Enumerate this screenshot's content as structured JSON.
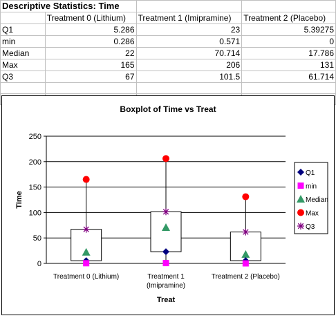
{
  "table": {
    "title": "Descriptive Statistics: Time",
    "headers": [
      "Treatment 0 (Lithium)",
      "Treatment 1 (Imipramine)",
      "Treatment 2 (Placebo)"
    ],
    "rows": [
      {
        "label": "Q1",
        "values": [
          "5.286",
          "23",
          "5.39275"
        ]
      },
      {
        "label": "min",
        "values": [
          "0.286",
          "0.571",
          "0"
        ]
      },
      {
        "label": "Median",
        "values": [
          "22",
          "70.714",
          "17.786"
        ]
      },
      {
        "label": "Max",
        "values": [
          "165",
          "206",
          "131"
        ]
      },
      {
        "label": "Q3",
        "values": [
          "67",
          "101.5",
          "61.714"
        ]
      }
    ]
  },
  "chart_data": {
    "type": "boxplot",
    "title": "Boxplot of Time vs Treat",
    "xlabel": "Treat",
    "ylabel": "Time",
    "ylim": [
      0,
      250
    ],
    "yticks": [
      0,
      50,
      100,
      150,
      200,
      250
    ],
    "grid": true,
    "legend_position": "right",
    "categories": [
      {
        "line1": "Treatment 0 (Lithium)",
        "line2": ""
      },
      {
        "line1": "Treatment 1",
        "line2": "(Imipramine)"
      },
      {
        "line1": "Treatment 2 (Placebo)",
        "line2": ""
      }
    ],
    "series": [
      {
        "name": "Q1",
        "values": [
          5.286,
          23,
          5.39275
        ],
        "color": "#00007f",
        "marker": "diamond"
      },
      {
        "name": "min",
        "values": [
          0.286,
          0.571,
          0
        ],
        "color": "#ff00ff",
        "marker": "square"
      },
      {
        "name": "Median",
        "values": [
          22,
          70.714,
          17.786
        ],
        "color": "#339966",
        "marker": "triangle"
      },
      {
        "name": "Max",
        "values": [
          165,
          206,
          131
        ],
        "color": "#ff0000",
        "marker": "circle"
      },
      {
        "name": "Q3",
        "values": [
          67,
          101.5,
          61.714
        ],
        "color": "#800080",
        "marker": "star"
      }
    ]
  }
}
